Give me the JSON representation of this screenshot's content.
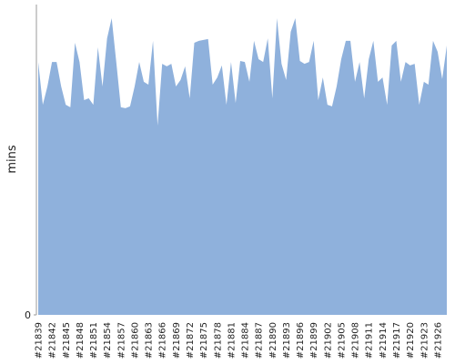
{
  "chart_data": {
    "type": "area",
    "y_label": "mins",
    "color": "#8fb1dc",
    "categories": [
      "#21839",
      null,
      null,
      "#21842",
      null,
      null,
      "#21845",
      null,
      null,
      "#21848",
      null,
      null,
      "#21851",
      null,
      null,
      "#21854",
      null,
      null,
      "#21857",
      null,
      null,
      "#21860",
      null,
      null,
      "#21863",
      null,
      null,
      "#21866",
      null,
      null,
      "#21869",
      null,
      null,
      "#21872",
      null,
      null,
      "#21875",
      null,
      null,
      "#21878",
      null,
      null,
      "#21881",
      null,
      null,
      "#21884",
      null,
      null,
      "#21887",
      null,
      null,
      "#21890",
      null,
      null,
      "#21893",
      null,
      null,
      "#21896",
      null,
      null,
      "#21899",
      null,
      null,
      "#21902",
      null,
      null,
      "#21905",
      null,
      null,
      "#21908",
      null,
      null,
      "#21911",
      null,
      null,
      "#21914",
      null,
      null,
      "#21917",
      null,
      null,
      "#21920",
      null,
      null,
      "#21923",
      null,
      null,
      "#21926",
      null,
      null
    ],
    "values": [
      81.5,
      67.7,
      73.6,
      81.5,
      81.5,
      73.6,
      67.7,
      66.9,
      87.7,
      81.5,
      69.2,
      69.8,
      67.7,
      86.2,
      73.6,
      89.1,
      95.6,
      81.5,
      66.9,
      66.6,
      67.2,
      73.6,
      81.5,
      75.1,
      74.2,
      88.3,
      61.0,
      80.9,
      80.1,
      80.9,
      73.6,
      75.7,
      80.1,
      69.8,
      87.7,
      88.3,
      88.6,
      88.9,
      74.2,
      76.5,
      80.4,
      67.7,
      81.5,
      68.3,
      81.8,
      81.5,
      75.1,
      88.3,
      82.4,
      81.5,
      89.1,
      69.8,
      95.6,
      80.9,
      75.7,
      91.2,
      95.6,
      81.8,
      80.9,
      81.5,
      88.3,
      69.2,
      76.5,
      67.7,
      67.2,
      73.6,
      82.4,
      88.3,
      88.3,
      75.1,
      81.5,
      69.8,
      82.4,
      88.3,
      75.1,
      76.5,
      67.7,
      86.8,
      88.3,
      75.1,
      81.5,
      80.4,
      80.9,
      67.7,
      75.1,
      74.2,
      88.3,
      84.8,
      76.0,
      86.8
    ],
    "ylim": [
      0,
      100
    ],
    "yticks": [
      0
    ]
  }
}
